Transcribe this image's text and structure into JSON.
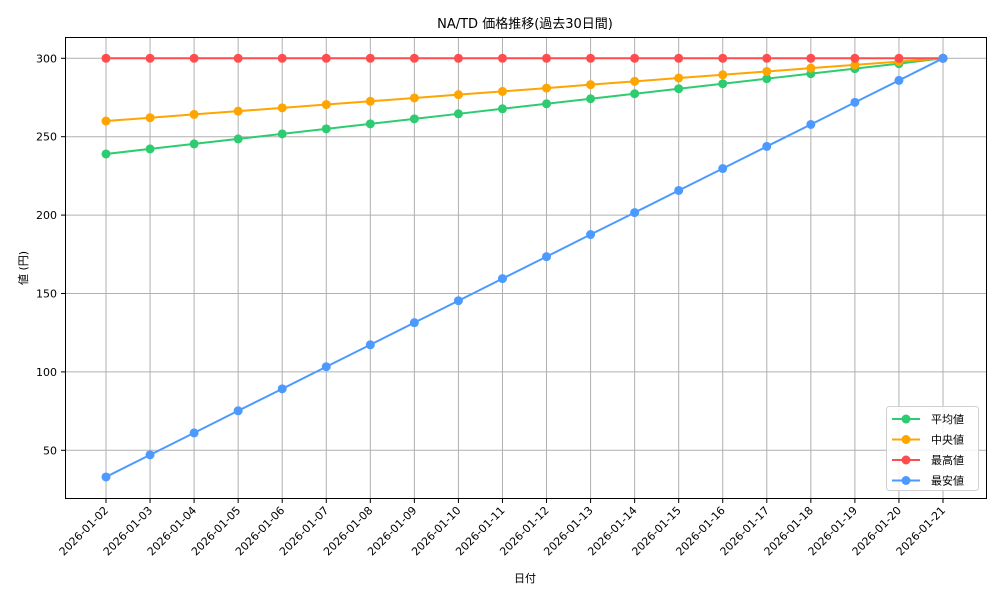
{
  "chart_data": {
    "type": "line",
    "title": "NA/TD 価格推移(過去30日間)",
    "xlabel": "日付",
    "ylabel": "値 (円)",
    "ylim": [
      20,
      313
    ],
    "yticks": [
      50,
      100,
      150,
      200,
      250,
      300
    ],
    "grid": true,
    "legend_position": "lower right",
    "categories": [
      "2026-01-02",
      "2026-01-03",
      "2026-01-04",
      "2026-01-05",
      "2026-01-06",
      "2026-01-07",
      "2026-01-08",
      "2026-01-09",
      "2026-01-10",
      "2026-01-11",
      "2026-01-12",
      "2026-01-13",
      "2026-01-14",
      "2026-01-15",
      "2026-01-16",
      "2026-01-17",
      "2026-01-18",
      "2026-01-19",
      "2026-01-20",
      "2026-01-21"
    ],
    "series": [
      {
        "name": "平均値",
        "color": "#2ecc71",
        "values": [
          239.0,
          242.2,
          245.4,
          248.6,
          251.8,
          255.0,
          258.2,
          261.4,
          264.6,
          267.8,
          271.0,
          274.2,
          277.4,
          280.6,
          283.8,
          287.0,
          290.2,
          293.4,
          296.6,
          300.0
        ]
      },
      {
        "name": "中央値",
        "color": "#ffa500",
        "values": [
          260.0,
          262.1,
          264.2,
          266.3,
          268.4,
          270.5,
          272.6,
          274.7,
          276.8,
          278.9,
          281.0,
          283.2,
          285.3,
          287.4,
          289.5,
          291.6,
          293.7,
          295.8,
          297.9,
          300.0
        ]
      },
      {
        "name": "最高値",
        "color": "#ff4c4c",
        "values": [
          300,
          300,
          300,
          300,
          300,
          300,
          300,
          300,
          300,
          300,
          300,
          300,
          300,
          300,
          300,
          300,
          300,
          300,
          300,
          300
        ]
      },
      {
        "name": "最安値",
        "color": "#4c9aff",
        "values": [
          33.0,
          47.1,
          61.1,
          75.2,
          89.2,
          103.3,
          117.3,
          131.4,
          145.4,
          159.5,
          173.5,
          187.6,
          201.6,
          215.7,
          229.7,
          243.8,
          257.8,
          271.9,
          285.9,
          300.0
        ]
      }
    ]
  }
}
